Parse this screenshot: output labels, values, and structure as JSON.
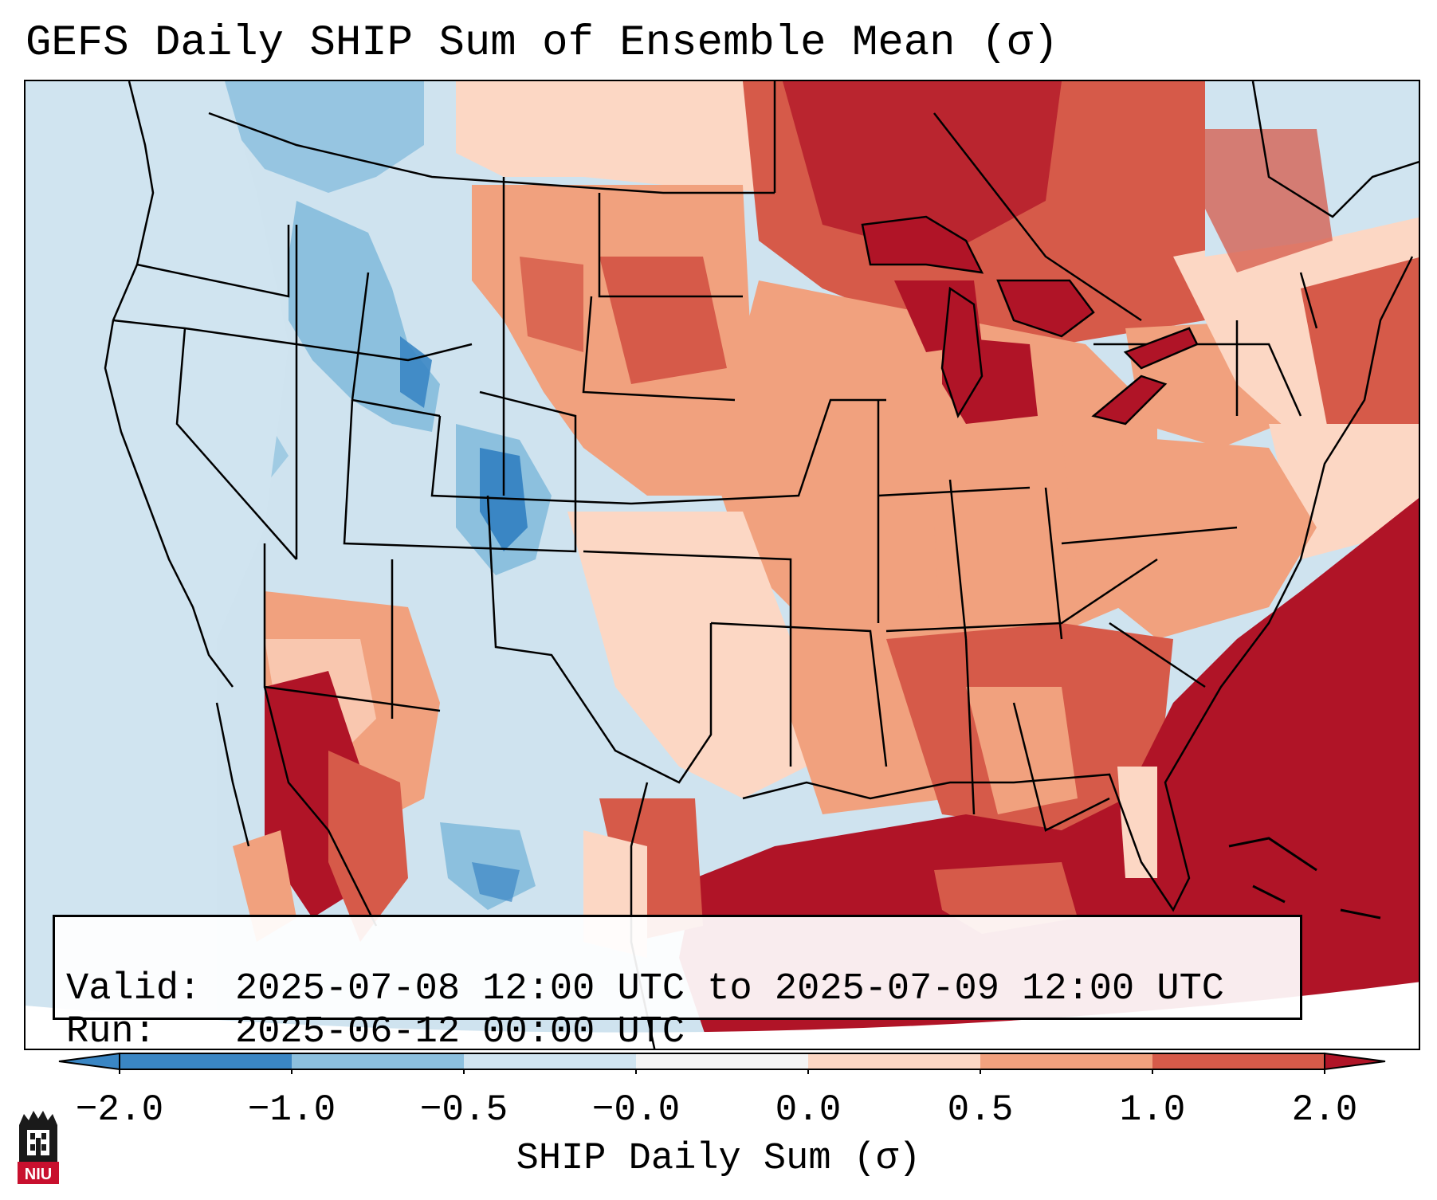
{
  "title": "GEFS Daily SHIP Sum of Ensemble Mean (σ)",
  "info": {
    "valid_key": "Valid:",
    "valid_value": "2025-07-08 12:00 UTC to 2025-07-09 12:00 UTC",
    "run_key": "Run:",
    "run_value": "2025-06-12 00:00 UTC"
  },
  "colorbar": {
    "label": "SHIP Daily Sum (σ)",
    "ticks": [
      "−2.0",
      "−1.0",
      "−0.5",
      "−0.0",
      "0.0",
      "0.5",
      "1.0",
      "2.0"
    ],
    "colors": [
      "#3a86c4",
      "#8cc0de",
      "#d0e4f0",
      "#f4f4f4",
      "#fcd7c4",
      "#f1a17e",
      "#d65a49",
      "#b01427"
    ],
    "extend": "both"
  },
  "map": {
    "region": "Continental United States",
    "field": "SHIP daily sum ensemble mean anomaly",
    "legend_colors": {
      "strong_negative": "#3a86c4",
      "negative": "#8cc0de",
      "weak_negative": "#d0e4f0",
      "weak_positive": "#fcd7c4",
      "positive": "#f1a17e",
      "strong_positive": "#d65a49",
      "extreme_positive": "#b01427"
    }
  },
  "logo": {
    "text": "NIU",
    "color": "#c8102e"
  }
}
